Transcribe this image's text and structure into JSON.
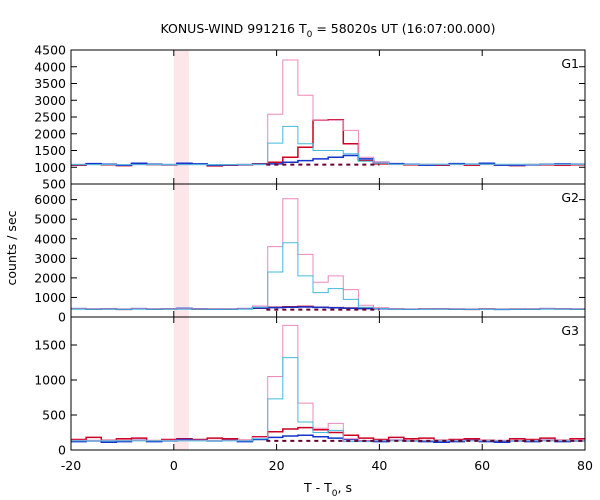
{
  "chart_data": {
    "type": "line",
    "title": {
      "prefix": "KONUS-WIND 991216 T",
      "sub": "0",
      "suffix": " = 58020s UT (16:07:00.000)"
    },
    "xlabel": {
      "prefix": "T - T",
      "sub": "0",
      "suffix": ", s"
    },
    "ylabel": "counts / sec",
    "xlim": [
      -20,
      80
    ],
    "xticks": [
      -20,
      0,
      20,
      40,
      60,
      80
    ],
    "highlight_band": [
      0,
      2.944
    ],
    "colors": {
      "lowres_a": "#cc0022",
      "lowres_b": "#1133cc",
      "hires_total": "#ee88bb",
      "hires_soft": "#44bbdd",
      "background": "#660033",
      "band": "#fde6ea"
    },
    "panels": [
      {
        "name": "G1",
        "ylim": [
          500,
          4500
        ],
        "yticks": [
          500,
          1000,
          1500,
          2000,
          2500,
          3000,
          3500,
          4000,
          4500
        ],
        "background_level": 1080,
        "background_range": [
          18,
          40
        ],
        "lowres_series": [
          {
            "t": [
              -20,
              -17.06,
              -14.11,
              -11.17,
              -8.23,
              -5.29,
              -2.34,
              0.6,
              3.54,
              6.49,
              9.43,
              12.37,
              15.31,
              18.26,
              21.2,
              24.14,
              27.09,
              30.03,
              32.97,
              35.91,
              38.86,
              41.8,
              44.74,
              47.69,
              50.63,
              53.57,
              56.51,
              59.46,
              62.4,
              65.34,
              68.29,
              71.23,
              74.17,
              77.11,
              80
            ],
            "v": [
              1060,
              1090,
              1070,
              1050,
              1100,
              1080,
              1070,
              1100,
              1090,
              1040,
              1060,
              1070,
              1100,
              1150,
              1300,
              1600,
              2400,
              2420,
              1700,
              1200,
              1100,
              1090,
              1070,
              1080,
              1060,
              1100,
              1060,
              1090,
              1060,
              1050,
              1080,
              1070,
              1060,
              1070
            ]
          },
          {
            "t": [
              -20,
              -17.06,
              -14.11,
              -11.17,
              -8.23,
              -5.29,
              -2.34,
              0.6,
              3.54,
              6.49,
              9.43,
              12.37,
              15.31,
              18.26,
              21.2,
              24.14,
              27.09,
              30.03,
              32.97,
              35.91,
              38.86,
              41.8,
              44.74,
              47.69,
              50.63,
              53.57,
              56.51,
              59.46,
              62.4,
              65.34,
              68.29,
              71.23,
              74.17,
              77.11,
              80
            ],
            "v": [
              1080,
              1110,
              1090,
              1060,
              1120,
              1090,
              1080,
              1120,
              1100,
              1060,
              1070,
              1080,
              1090,
              1100,
              1150,
              1200,
              1250,
              1300,
              1350,
              1250,
              1150,
              1110,
              1090,
              1060,
              1080,
              1110,
              1090,
              1120,
              1060,
              1060,
              1070,
              1090,
              1100,
              1090
            ]
          }
        ],
        "total_series": {
          "t": [
            -20,
            18.26,
            21.2,
            24.14,
            27.09,
            30.03,
            32.97,
            35.91,
            38.86,
            41.8,
            80
          ],
          "v": [
            1080,
            2580,
            4200,
            3150,
            2400,
            2400,
            2100,
            1300,
            1150,
            1080
          ]
        },
        "soft_series": {
          "t": [
            -20,
            18.26,
            21.2,
            24.14,
            27.09,
            30.03,
            32.97,
            35.91,
            38.86,
            41.8,
            80
          ],
          "v": [
            1080,
            1720,
            2220,
            1700,
            1500,
            1500,
            1400,
            1180,
            1120,
            1090
          ]
        }
      },
      {
        "name": "G2",
        "ylim": [
          0,
          6800
        ],
        "yticks": [
          0,
          1000,
          2000,
          3000,
          4000,
          5000,
          6000
        ],
        "background_level": 380,
        "background_range": [
          18,
          40
        ],
        "lowres_series": [
          {
            "t": [
              -20,
              -17.06,
              -14.11,
              -11.17,
              -8.23,
              -5.29,
              -2.34,
              0.6,
              3.54,
              6.49,
              9.43,
              12.37,
              15.31,
              18.26,
              21.2,
              24.14,
              27.09,
              30.03,
              32.97,
              35.91,
              38.86,
              41.8,
              44.74,
              47.69,
              50.63,
              53.57,
              56.51,
              59.46,
              62.4,
              65.34,
              68.29,
              71.23,
              74.17,
              77.11,
              80
            ],
            "v": [
              420,
              400,
              410,
              390,
              420,
              400,
              410,
              420,
              400,
              410,
              400,
              420,
              450,
              500,
              520,
              540,
              500,
              480,
              460,
              440,
              420,
              410,
              400,
              420,
              410,
              400,
              390,
              420,
              400,
              410,
              400,
              420,
              410,
              400
            ]
          },
          {
            "t": [
              -20,
              -17.06,
              -14.11,
              -11.17,
              -8.23,
              -5.29,
              -2.34,
              0.6,
              3.54,
              6.49,
              9.43,
              12.37,
              15.31,
              18.26,
              21.2,
              24.14,
              27.09,
              30.03,
              32.97,
              35.91,
              38.86,
              41.8,
              44.74,
              47.69,
              50.63,
              53.57,
              56.51,
              59.46,
              62.4,
              65.34,
              68.29,
              71.23,
              74.17,
              77.11,
              80
            ],
            "v": [
              430,
              410,
              420,
              400,
              430,
              410,
              420,
              440,
              420,
              400,
              410,
              430,
              460,
              480,
              500,
              510,
              490,
              470,
              450,
              430,
              420,
              410,
              400,
              410,
              420,
              410,
              400,
              410,
              390,
              400,
              410,
              430,
              420,
              410
            ]
          }
        ],
        "total_series": {
          "t": [
            -20,
            15.31,
            18.26,
            21.2,
            24.14,
            27.09,
            30.03,
            32.97,
            35.91,
            38.86,
            41.8,
            80
          ],
          "v": [
            420,
            560,
            3600,
            6050,
            3200,
            1780,
            2100,
            1400,
            600,
            480,
            420
          ]
        },
        "soft_series": {
          "t": [
            -20,
            15.31,
            18.26,
            21.2,
            24.14,
            27.09,
            30.03,
            32.97,
            35.91,
            38.86,
            41.8,
            80
          ],
          "v": [
            400,
            500,
            2300,
            3800,
            2100,
            1250,
            1450,
            900,
            500,
            430,
            400
          ]
        }
      },
      {
        "name": "G3",
        "ylim": [
          0,
          1900
        ],
        "yticks": [
          0,
          500,
          1000,
          1500
        ],
        "background_level": 130,
        "background_range": [
          18,
          80
        ],
        "lowres_series": [
          {
            "t": [
              -20,
              -17.06,
              -14.11,
              -11.17,
              -8.23,
              -5.29,
              -2.34,
              0.6,
              3.54,
              6.49,
              9.43,
              12.37,
              15.31,
              18.26,
              21.2,
              24.14,
              27.09,
              30.03,
              32.97,
              35.91,
              38.86,
              41.8,
              44.74,
              47.69,
              50.63,
              53.57,
              56.51,
              59.46,
              62.4,
              65.34,
              68.29,
              71.23,
              74.17,
              77.11,
              80
            ],
            "v": [
              150,
              180,
              140,
              160,
              170,
              130,
              150,
              160,
              150,
              170,
              160,
              140,
              190,
              260,
              300,
              320,
              290,
              250,
              210,
              170,
              150,
              180,
              160,
              170,
              140,
              150,
              160,
              140,
              130,
              160,
              150,
              170,
              140,
              160
            ]
          },
          {
            "t": [
              -20,
              -17.06,
              -14.11,
              -11.17,
              -8.23,
              -5.29,
              -2.34,
              0.6,
              3.54,
              6.49,
              9.43,
              12.37,
              15.31,
              18.26,
              21.2,
              24.14,
              27.09,
              30.03,
              32.97,
              35.91,
              38.86,
              41.8,
              44.74,
              47.69,
              50.63,
              53.57,
              56.51,
              59.46,
              62.4,
              65.34,
              68.29,
              71.23,
              74.17,
              77.11,
              80
            ],
            "v": [
              120,
              130,
              110,
              120,
              140,
              120,
              130,
              150,
              140,
              130,
              140,
              120,
              150,
              180,
              200,
              210,
              190,
              170,
              150,
              130,
              120,
              140,
              130,
              120,
              110,
              120,
              140,
              120,
              110,
              130,
              120,
              140,
              120,
              130
            ]
          }
        ],
        "total_series": {
          "t": [
            -20,
            15.31,
            18.26,
            21.2,
            24.14,
            27.09,
            30.03,
            32.97,
            35.91,
            38.86,
            80
          ],
          "v": [
            140,
            180,
            1050,
            1780,
            670,
            310,
            380,
            160,
            130,
            140
          ]
        },
        "soft_series": {
          "t": [
            -20,
            15.31,
            18.26,
            21.2,
            24.14,
            27.09,
            30.03,
            32.97,
            35.91,
            38.86,
            80
          ],
          "v": [
            130,
            160,
            730,
            1320,
            400,
            250,
            280,
            120,
            120,
            130
          ]
        }
      }
    ]
  }
}
